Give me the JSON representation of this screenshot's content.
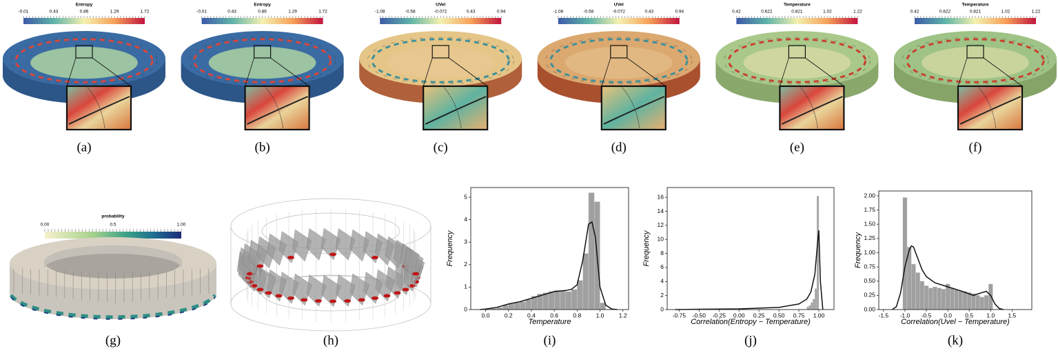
{
  "panels": [
    {
      "title": "Entropy",
      "ticks": [
        "-0.01",
        "0.43",
        "0.86",
        "1.29",
        "1.72"
      ],
      "caption": "(a)"
    },
    {
      "title": "Entropy",
      "ticks": [
        "-0.01",
        "0.43",
        "0.86",
        "1.29",
        "1.72"
      ],
      "caption": "(b)"
    },
    {
      "title": "UVel",
      "ticks": [
        "-1.08",
        "-0.58",
        "-0.072",
        "0.43",
        "0.94"
      ],
      "caption": "(c)"
    },
    {
      "title": "UVel",
      "ticks": [
        "-1.08",
        "-0.58",
        "-0.072",
        "0.43",
        "0.94"
      ],
      "caption": "(d)"
    },
    {
      "title": "Temperature",
      "ticks": [
        "0.42",
        "0.622",
        "0.821",
        "1.02",
        "1.22"
      ],
      "caption": "(e)"
    },
    {
      "title": "Temperature",
      "ticks": [
        "0.42",
        "0.622",
        "0.821",
        "1.02",
        "1.22"
      ],
      "caption": "(f)"
    }
  ],
  "probability_panel": {
    "title": "probability",
    "ticks": [
      "0.00",
      "0.5",
      "1.00"
    ],
    "caption": "(g)"
  },
  "wireframe_panel": {
    "caption": "(h)"
  },
  "chart_data": [
    {
      "type": "histogram",
      "caption": "(i)",
      "xlabel": "Temperature",
      "ylabel": "Frequency",
      "color": "#a0a0a0",
      "bins": [
        0.0,
        0.05,
        0.1,
        0.15,
        0.2,
        0.25,
        0.3,
        0.35,
        0.4,
        0.45,
        0.5,
        0.55,
        0.6,
        0.65,
        0.7,
        0.75,
        0.8,
        0.85,
        0.9,
        0.95,
        1.0,
        1.05
      ],
      "values": [
        0.02,
        0.05,
        0.1,
        0.2,
        0.25,
        0.3,
        0.35,
        0.45,
        0.6,
        0.7,
        0.75,
        0.8,
        0.85,
        0.85,
        0.8,
        0.9,
        1.3,
        2.5,
        5.2,
        4.8,
        0.3
      ],
      "kde": {
        "x": [
          -0.05,
          0,
          0.1,
          0.2,
          0.3,
          0.4,
          0.5,
          0.6,
          0.7,
          0.75,
          0.8,
          0.85,
          0.9,
          0.93,
          0.96,
          1.0,
          1.05,
          1.1,
          1.15
        ],
        "values": [
          0,
          0.02,
          0.1,
          0.25,
          0.35,
          0.5,
          0.65,
          0.8,
          0.85,
          0.9,
          1.1,
          2.2,
          3.8,
          3.9,
          3.2,
          1.0,
          0.2,
          0.03,
          0
        ]
      },
      "xlim": [
        -0.13,
        1.25
      ],
      "ylim": [
        0,
        5.43
      ],
      "xticks": [
        {
          "value": 0,
          "label": "0.0"
        },
        0.2,
        0.4,
        0.6,
        0.8,
        {
          "value": 1,
          "label": "1.0"
        },
        1.2
      ],
      "yticks": [
        0,
        1,
        2,
        3,
        4,
        5
      ]
    },
    {
      "type": "histogram",
      "caption": "(j)",
      "xlabel": "Correlation(Entropy − Temperature)",
      "ylabel": "Frequency",
      "color": "#a0a0a0",
      "bins": [
        0.85,
        0.875,
        0.9,
        0.925,
        0.95,
        0.975,
        1.0
      ],
      "values": [
        0.4,
        0.6,
        1.0,
        1.5,
        3.0,
        16.2
      ],
      "kde": {
        "x": [
          -0.8,
          -0.5,
          0,
          0.5,
          0.75,
          0.85,
          0.9,
          0.95,
          0.98,
          1.0,
          1.02,
          1.05
        ],
        "values": [
          0,
          0.05,
          0.1,
          0.3,
          0.8,
          1.5,
          2.5,
          5,
          9,
          11.3,
          4,
          0
        ]
      },
      "xlim": [
        -0.9,
        1.19
      ],
      "ylim": [
        0,
        17.4
      ],
      "xticks": [
        -0.75,
        {
          "value": -0.5,
          "label": "-0.50"
        },
        -0.25,
        {
          "value": 0,
          "label": "0.00"
        },
        0.25,
        {
          "value": 0.5,
          "label": "0.50"
        },
        0.75,
        {
          "value": 1,
          "label": "1.00"
        }
      ],
      "yticks": [
        0,
        2,
        4,
        6,
        8,
        10,
        12,
        14,
        16
      ]
    },
    {
      "type": "histogram",
      "caption": "(k)",
      "xlabel": "Correlation(Uvel − Temperature)",
      "ylabel": "Frequency",
      "color": "#a0a0a0",
      "bins": [
        -1.05,
        -0.95,
        -0.85,
        -0.75,
        -0.65,
        -0.55,
        -0.45,
        -0.35,
        -0.25,
        -0.15,
        -0.05,
        0.05,
        0.15,
        0.25,
        0.35,
        0.45,
        0.55,
        0.65,
        0.75,
        0.85,
        0.95,
        1.05
      ],
      "values": [
        1.97,
        1.1,
        0.8,
        0.65,
        0.5,
        0.42,
        0.38,
        0.4,
        0.38,
        0.36,
        0.45,
        0.38,
        0.35,
        0.33,
        0.32,
        0.3,
        0.28,
        0.25,
        0.22,
        0.25,
        0.45
      ],
      "kde": {
        "x": [
          -1.3,
          -1.2,
          -1.1,
          -1.0,
          -0.9,
          -0.85,
          -0.8,
          -0.7,
          -0.6,
          -0.5,
          -0.3,
          0,
          0.3,
          0.6,
          0.8,
          0.9,
          1.0,
          1.1,
          1.2,
          1.3
        ],
        "values": [
          0,
          0.05,
          0.3,
          0.75,
          1.05,
          1.12,
          1.1,
          0.9,
          0.7,
          0.58,
          0.47,
          0.4,
          0.33,
          0.25,
          0.3,
          0.32,
          0.25,
          0.1,
          0.02,
          0
        ]
      },
      "xlim": [
        -1.61,
        1.96
      ],
      "ylim": [
        0,
        2.085
      ],
      "xticks": [
        -1.5,
        {
          "value": -1,
          "label": "-1.0"
        },
        -0.5,
        {
          "value": 0,
          "label": "0.0"
        },
        0.5,
        {
          "value": 1,
          "label": "1.0"
        },
        1.5
      ],
      "yticks": [
        {
          "value": 0,
          "label": "0.00"
        },
        0.25,
        {
          "value": 0.5,
          "label": "0.50"
        },
        0.75,
        {
          "value": 1,
          "label": "1.00"
        },
        1.25,
        {
          "value": 1.5,
          "label": "1.50"
        },
        1.75,
        {
          "value": 2,
          "label": "2.00"
        }
      ]
    }
  ]
}
